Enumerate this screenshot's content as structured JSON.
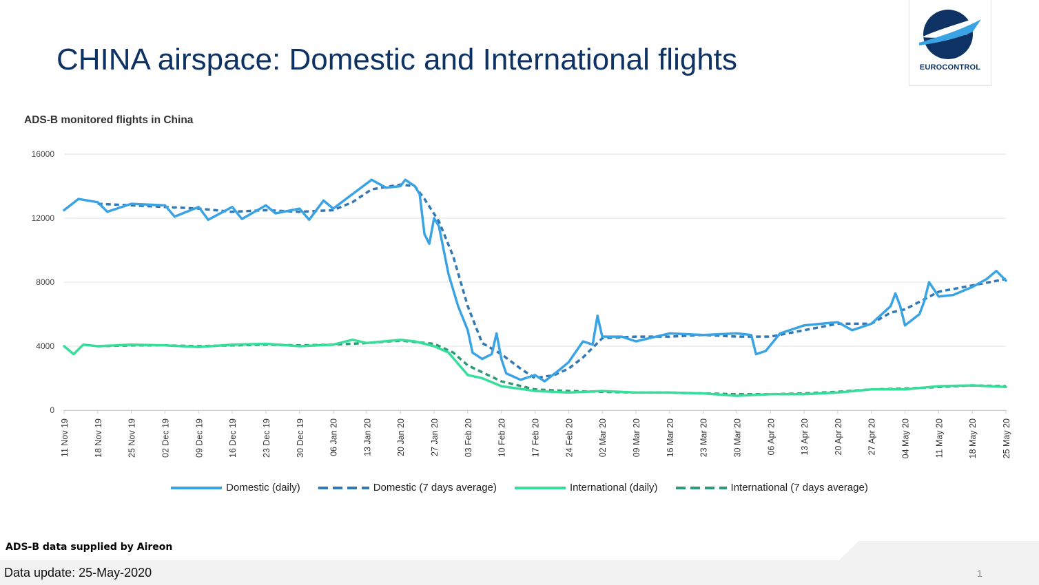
{
  "slide": {
    "title": "CHINA airspace: Domestic and International flights",
    "logo_text": "EUROCONTROL",
    "source_note": "ADS-B data supplied by Aireon",
    "data_update": "Data update: 25-May-2020",
    "page_number": "1"
  },
  "colors": {
    "title": "#0e3263",
    "domestic_daily": "#3aa3e3",
    "domestic_avg": "#3178b4",
    "international_daily": "#37dd9a",
    "international_avg": "#2f9a73",
    "grid": "#e1e1e1"
  },
  "chart_data": {
    "type": "line",
    "title": "ADS-B monitored flights in China",
    "xlabel": "",
    "ylabel": "",
    "ylim": [
      0,
      16000
    ],
    "yticks": [
      0,
      4000,
      8000,
      12000,
      16000
    ],
    "ytick_labels": [
      "0",
      "4000",
      "8000",
      "12000",
      "16000"
    ],
    "grid": true,
    "legend_position": "bottom",
    "x_start": "2019-11-11",
    "x_end": "2020-05-25",
    "xtick_labels": [
      "11 Nov 19",
      "18 Nov 19",
      "25 Nov 19",
      "02 Dec 19",
      "09 Dec 19",
      "16 Dec 19",
      "23 Dec 19",
      "30 Dec 19",
      "06 Jan 20",
      "13 Jan 20",
      "20 Jan 20",
      "27 Jan 20",
      "03 Feb 20",
      "10 Feb 20",
      "17 Feb 20",
      "24 Feb 20",
      "02 Mar 20",
      "09 Mar 20",
      "16 Mar 20",
      "23 Mar 20",
      "30 Mar 20",
      "06 Apr 20",
      "13 Apr 20",
      "20 Apr 20",
      "27 Apr 20",
      "04 May 20",
      "11 May 20",
      "18 May 20",
      "25 May 20"
    ],
    "series": [
      {
        "name": "Domestic (daily)",
        "style": "solid",
        "points": [
          [
            "2019-11-11",
            12500
          ],
          [
            "2019-11-14",
            13200
          ],
          [
            "2019-11-18",
            13000
          ],
          [
            "2019-11-20",
            12400
          ],
          [
            "2019-11-25",
            12900
          ],
          [
            "2019-12-02",
            12800
          ],
          [
            "2019-12-04",
            12100
          ],
          [
            "2019-12-09",
            12700
          ],
          [
            "2019-12-11",
            11900
          ],
          [
            "2019-12-16",
            12700
          ],
          [
            "2019-12-18",
            11950
          ],
          [
            "2019-12-23",
            12800
          ],
          [
            "2019-12-25",
            12300
          ],
          [
            "2019-12-30",
            12600
          ],
          [
            "2020-01-01",
            11900
          ],
          [
            "2020-01-04",
            13100
          ],
          [
            "2020-01-06",
            12600
          ],
          [
            "2020-01-10",
            13500
          ],
          [
            "2020-01-14",
            14400
          ],
          [
            "2020-01-17",
            13900
          ],
          [
            "2020-01-20",
            14000
          ],
          [
            "2020-01-21",
            14400
          ],
          [
            "2020-01-23",
            14000
          ],
          [
            "2020-01-24",
            13500
          ],
          [
            "2020-01-25",
            11000
          ],
          [
            "2020-01-26",
            10400
          ],
          [
            "2020-01-27",
            12000
          ],
          [
            "2020-01-28",
            11500
          ],
          [
            "2020-01-30",
            8500
          ],
          [
            "2020-02-01",
            6500
          ],
          [
            "2020-02-03",
            5000
          ],
          [
            "2020-02-04",
            3600
          ],
          [
            "2020-02-06",
            3200
          ],
          [
            "2020-02-08",
            3500
          ],
          [
            "2020-02-09",
            4800
          ],
          [
            "2020-02-10",
            3200
          ],
          [
            "2020-02-11",
            2300
          ],
          [
            "2020-02-14",
            1900
          ],
          [
            "2020-02-17",
            2200
          ],
          [
            "2020-02-19",
            1800
          ],
          [
            "2020-02-22",
            2500
          ],
          [
            "2020-02-24",
            3000
          ],
          [
            "2020-02-27",
            4300
          ],
          [
            "2020-02-29",
            4100
          ],
          [
            "2020-03-01",
            5900
          ],
          [
            "2020-03-02",
            4600
          ],
          [
            "2020-03-06",
            4600
          ],
          [
            "2020-03-09",
            4300
          ],
          [
            "2020-03-16",
            4800
          ],
          [
            "2020-03-23",
            4700
          ],
          [
            "2020-03-30",
            4800
          ],
          [
            "2020-04-02",
            4700
          ],
          [
            "2020-04-03",
            3500
          ],
          [
            "2020-04-05",
            3700
          ],
          [
            "2020-04-08",
            4800
          ],
          [
            "2020-04-13",
            5300
          ],
          [
            "2020-04-20",
            5500
          ],
          [
            "2020-04-23",
            5000
          ],
          [
            "2020-04-27",
            5400
          ],
          [
            "2020-05-01",
            6500
          ],
          [
            "2020-05-02",
            7300
          ],
          [
            "2020-05-03",
            6500
          ],
          [
            "2020-05-04",
            5300
          ],
          [
            "2020-05-07",
            6000
          ],
          [
            "2020-05-08",
            6800
          ],
          [
            "2020-05-09",
            8000
          ],
          [
            "2020-05-11",
            7100
          ],
          [
            "2020-05-14",
            7200
          ],
          [
            "2020-05-18",
            7700
          ],
          [
            "2020-05-21",
            8200
          ],
          [
            "2020-05-23",
            8700
          ],
          [
            "2020-05-25",
            8100
          ]
        ]
      },
      {
        "name": "Domestic (7 days average)",
        "style": "dashed",
        "points": [
          [
            "2019-11-18",
            12900
          ],
          [
            "2019-11-25",
            12800
          ],
          [
            "2019-12-02",
            12700
          ],
          [
            "2019-12-09",
            12600
          ],
          [
            "2019-12-16",
            12400
          ],
          [
            "2019-12-23",
            12500
          ],
          [
            "2019-12-30",
            12400
          ],
          [
            "2020-01-06",
            12500
          ],
          [
            "2020-01-10",
            13000
          ],
          [
            "2020-01-14",
            13800
          ],
          [
            "2020-01-20",
            14100
          ],
          [
            "2020-01-23",
            14000
          ],
          [
            "2020-01-25",
            13200
          ],
          [
            "2020-01-28",
            11800
          ],
          [
            "2020-01-31",
            9600
          ],
          [
            "2020-02-03",
            6500
          ],
          [
            "2020-02-06",
            4200
          ],
          [
            "2020-02-10",
            3500
          ],
          [
            "2020-02-14",
            2600
          ],
          [
            "2020-02-17",
            2000
          ],
          [
            "2020-02-21",
            2200
          ],
          [
            "2020-02-24",
            2600
          ],
          [
            "2020-02-27",
            3300
          ],
          [
            "2020-03-02",
            4500
          ],
          [
            "2020-03-09",
            4600
          ],
          [
            "2020-03-16",
            4600
          ],
          [
            "2020-03-23",
            4700
          ],
          [
            "2020-03-30",
            4600
          ],
          [
            "2020-04-06",
            4600
          ],
          [
            "2020-04-13",
            5000
          ],
          [
            "2020-04-20",
            5400
          ],
          [
            "2020-04-27",
            5400
          ],
          [
            "2020-05-01",
            6100
          ],
          [
            "2020-05-04",
            6300
          ],
          [
            "2020-05-11",
            7400
          ],
          [
            "2020-05-18",
            7800
          ],
          [
            "2020-05-25",
            8200
          ]
        ]
      },
      {
        "name": "International (daily)",
        "style": "solid",
        "points": [
          [
            "2019-11-11",
            4000
          ],
          [
            "2019-11-13",
            3500
          ],
          [
            "2019-11-15",
            4100
          ],
          [
            "2019-11-18",
            4000
          ],
          [
            "2019-11-25",
            4100
          ],
          [
            "2019-12-02",
            4050
          ],
          [
            "2019-12-09",
            3950
          ],
          [
            "2019-12-16",
            4100
          ],
          [
            "2019-12-23",
            4150
          ],
          [
            "2019-12-30",
            4000
          ],
          [
            "2020-01-06",
            4100
          ],
          [
            "2020-01-10",
            4400
          ],
          [
            "2020-01-13",
            4200
          ],
          [
            "2020-01-20",
            4400
          ],
          [
            "2020-01-23",
            4300
          ],
          [
            "2020-01-27",
            4000
          ],
          [
            "2020-01-30",
            3600
          ],
          [
            "2020-02-03",
            2200
          ],
          [
            "2020-02-06",
            2000
          ],
          [
            "2020-02-10",
            1500
          ],
          [
            "2020-02-17",
            1200
          ],
          [
            "2020-02-24",
            1100
          ],
          [
            "2020-03-02",
            1200
          ],
          [
            "2020-03-09",
            1100
          ],
          [
            "2020-03-16",
            1100
          ],
          [
            "2020-03-23",
            1050
          ],
          [
            "2020-03-30",
            900
          ],
          [
            "2020-04-06",
            1000
          ],
          [
            "2020-04-13",
            1000
          ],
          [
            "2020-04-20",
            1100
          ],
          [
            "2020-04-27",
            1300
          ],
          [
            "2020-05-04",
            1300
          ],
          [
            "2020-05-11",
            1500
          ],
          [
            "2020-05-18",
            1550
          ],
          [
            "2020-05-25",
            1450
          ]
        ]
      },
      {
        "name": "International (7 days average)",
        "style": "dashed",
        "points": [
          [
            "2019-11-18",
            4000
          ],
          [
            "2019-11-25",
            4050
          ],
          [
            "2019-12-02",
            4050
          ],
          [
            "2019-12-09",
            4000
          ],
          [
            "2019-12-16",
            4050
          ],
          [
            "2019-12-23",
            4100
          ],
          [
            "2019-12-30",
            4050
          ],
          [
            "2020-01-06",
            4100
          ],
          [
            "2020-01-13",
            4200
          ],
          [
            "2020-01-20",
            4350
          ],
          [
            "2020-01-27",
            4150
          ],
          [
            "2020-01-31",
            3600
          ],
          [
            "2020-02-03",
            2800
          ],
          [
            "2020-02-10",
            1800
          ],
          [
            "2020-02-17",
            1300
          ],
          [
            "2020-02-24",
            1200
          ],
          [
            "2020-03-02",
            1150
          ],
          [
            "2020-03-09",
            1100
          ],
          [
            "2020-03-16",
            1100
          ],
          [
            "2020-03-23",
            1050
          ],
          [
            "2020-03-30",
            1000
          ],
          [
            "2020-04-06",
            1000
          ],
          [
            "2020-04-13",
            1050
          ],
          [
            "2020-04-20",
            1150
          ],
          [
            "2020-04-27",
            1300
          ],
          [
            "2020-05-04",
            1350
          ],
          [
            "2020-05-11",
            1450
          ],
          [
            "2020-05-18",
            1550
          ],
          [
            "2020-05-25",
            1500
          ]
        ]
      }
    ]
  }
}
